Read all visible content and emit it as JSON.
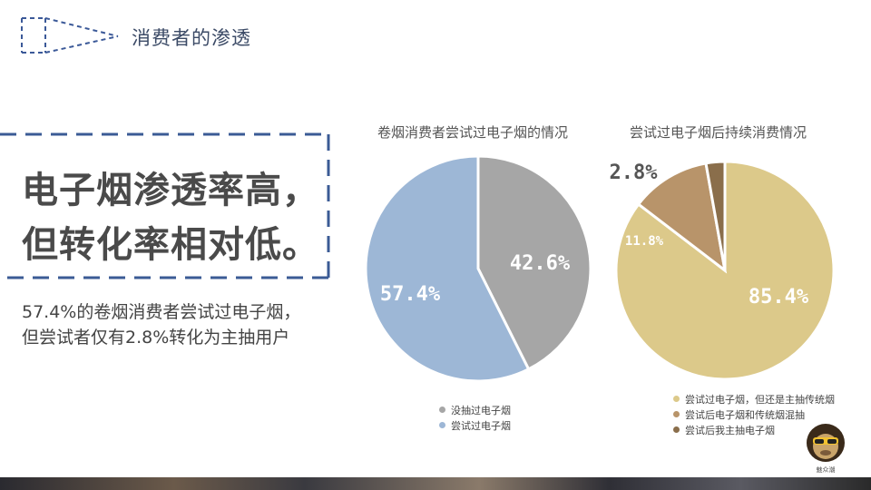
{
  "header": {
    "title": "消费者的渗透"
  },
  "headline": {
    "line1": "电子烟渗透率高，",
    "line2": "但转化率相对低。"
  },
  "body": {
    "line1": "57.4%的卷烟消费者尝试过电子烟，",
    "line2": "但尝试者仅有2.8%转化为主抽用户"
  },
  "brand": {
    "text": "魅众潮"
  },
  "chart_data": [
    {
      "type": "pie",
      "title": "卷烟消费者尝试过电子烟的情况",
      "slices": [
        {
          "label": "没抽过电子烟",
          "value": 42.6,
          "display": "42.6%",
          "color": "#a6a6a6"
        },
        {
          "label": "尝试过电子烟",
          "value": 57.4,
          "display": "57.4%",
          "color": "#9db7d6"
        }
      ]
    },
    {
      "type": "pie",
      "title": "尝试过电子烟后持续消费情况",
      "slices": [
        {
          "label": "尝试过电子烟，但还是主抽传统烟",
          "value": 85.4,
          "display": "85.4%",
          "color": "#dcc98a"
        },
        {
          "label": "尝试后电子烟和传统烟混抽",
          "value": 11.8,
          "display": "11.8%",
          "color": "#b8946a"
        },
        {
          "label": "尝试后我主抽电子烟",
          "value": 2.8,
          "display": "2.8%",
          "color": "#8a6e4b"
        }
      ]
    }
  ]
}
